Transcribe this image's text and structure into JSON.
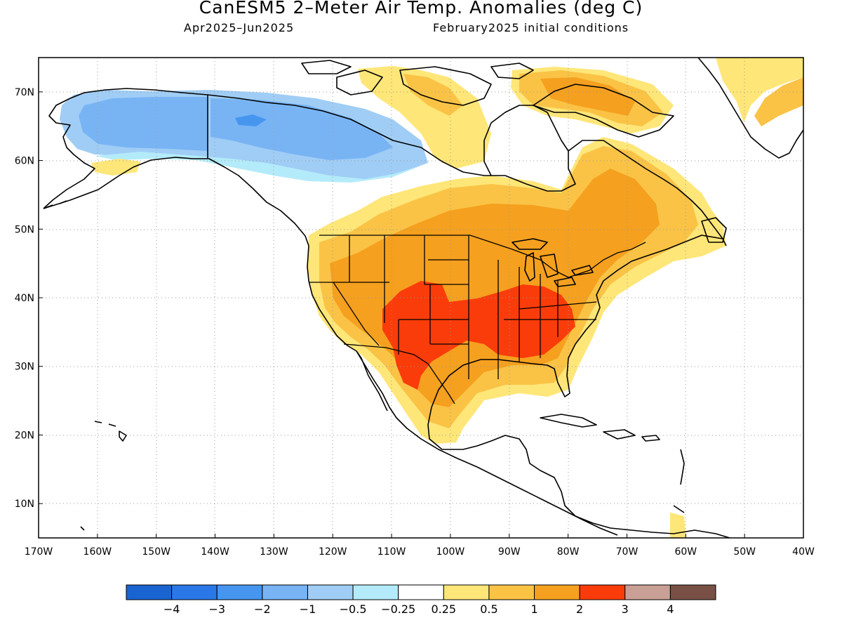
{
  "title": "CanESM5 2–Meter Air Temp. Anomalies (deg C)",
  "period": "Apr2025–Jun2025",
  "init": "February2025 initial conditions",
  "map": {
    "lon_range": [
      -170,
      -40
    ],
    "lat_range": [
      5,
      75
    ],
    "lat_ticks": [
      {
        "value": 70,
        "label": "70N"
      },
      {
        "value": 60,
        "label": "60N"
      },
      {
        "value": 50,
        "label": "50N"
      },
      {
        "value": 40,
        "label": "40N"
      },
      {
        "value": 30,
        "label": "30N"
      },
      {
        "value": 20,
        "label": "20N"
      },
      {
        "value": 10,
        "label": "10N"
      }
    ],
    "lon_ticks": [
      {
        "value": -170,
        "label": "170W"
      },
      {
        "value": -160,
        "label": "160W"
      },
      {
        "value": -150,
        "label": "150W"
      },
      {
        "value": -140,
        "label": "140W"
      },
      {
        "value": -130,
        "label": "130W"
      },
      {
        "value": -120,
        "label": "120W"
      },
      {
        "value": -110,
        "label": "110W"
      },
      {
        "value": -100,
        "label": "100W"
      },
      {
        "value": -90,
        "label": "90W"
      },
      {
        "value": -80,
        "label": "80W"
      },
      {
        "value": -70,
        "label": "70W"
      },
      {
        "value": -60,
        "label": "60W"
      },
      {
        "value": -50,
        "label": "50W"
      },
      {
        "value": -40,
        "label": "40W"
      }
    ],
    "grid": "dotted"
  },
  "colorbar": {
    "colors": [
      "#1a64d2",
      "#2a78e8",
      "#4696f0",
      "#78b4f4",
      "#a0cdf5",
      "#b4ebfa",
      "#ffffff",
      "#ffe678",
      "#fac346",
      "#f5a01e",
      "#fa3c0a",
      "#c8a096",
      "#785046"
    ],
    "labels": [
      "−4",
      "−3",
      "−2",
      "−1",
      "−0.5",
      "−0.25",
      "0.25",
      "0.5",
      "1",
      "2",
      "3",
      "4"
    ]
  },
  "colors": {
    "cold_dark": "#4696f0",
    "cold_mid": "#78b4f4",
    "cold_light": "#a0cdf5",
    "cold_pale": "#b4ebfa",
    "warm_pale": "#ffe678",
    "warm_light": "#fac346",
    "warm_mid": "#f5a01e",
    "warm_hot": "#fa3c0a"
  }
}
